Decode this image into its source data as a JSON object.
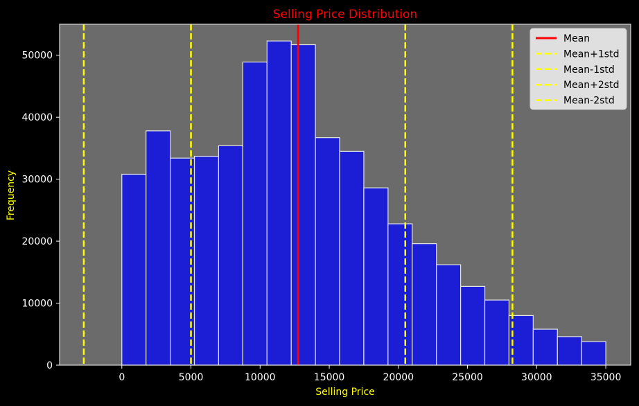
{
  "chart_data": {
    "type": "bar",
    "title": "Selling Price Distribution",
    "xlabel": "Selling Price",
    "ylabel": "Frequency",
    "xlim": [
      -4500,
      36800
    ],
    "ylim": [
      0,
      55000
    ],
    "xticks": [
      0,
      5000,
      10000,
      15000,
      20000,
      25000,
      30000,
      35000
    ],
    "yticks": [
      0,
      10000,
      20000,
      30000,
      40000,
      50000
    ],
    "bins": {
      "edges": [
        0,
        1750,
        3500,
        5250,
        7000,
        8750,
        10500,
        12250,
        14000,
        15750,
        17500,
        19250,
        21000,
        22750,
        24500,
        26250,
        28000,
        29750,
        31500,
        33250,
        35000
      ],
      "counts": [
        30800,
        37800,
        33400,
        33700,
        35400,
        48900,
        52300,
        51700,
        36700,
        34500,
        28600,
        22800,
        19600,
        16200,
        12700,
        10500,
        8000,
        5800,
        4600,
        3800
      ]
    },
    "reference_lines": [
      {
        "name": "Mean",
        "x": 12750,
        "color": "#ff0000",
        "style": "solid"
      },
      {
        "name": "Mean+1std",
        "x": 20500,
        "color": "#ffff00",
        "style": "dashed"
      },
      {
        "name": "Mean-1std",
        "x": 5000,
        "color": "#ffff00",
        "style": "dashed"
      },
      {
        "name": "Mean+2std",
        "x": 28250,
        "color": "#ffff00",
        "style": "dashed"
      },
      {
        "name": "Mean-2std",
        "x": -2750,
        "color": "#ffff00",
        "style": "dashed"
      }
    ],
    "legend": {
      "position": "top-right",
      "entries": [
        "Mean",
        "Mean+1std",
        "Mean-1std",
        "Mean+2std",
        "Mean-2std"
      ]
    },
    "colors": {
      "figure_bg": "#000000",
      "plot_bg": "#6b6b6b",
      "bar_fill": "#1c1ed6",
      "bar_edge": "#e6e6e6",
      "title": "#ff0000",
      "axis_label": "#ffff00",
      "tick_label": "#ffffff"
    },
    "grid": false
  }
}
